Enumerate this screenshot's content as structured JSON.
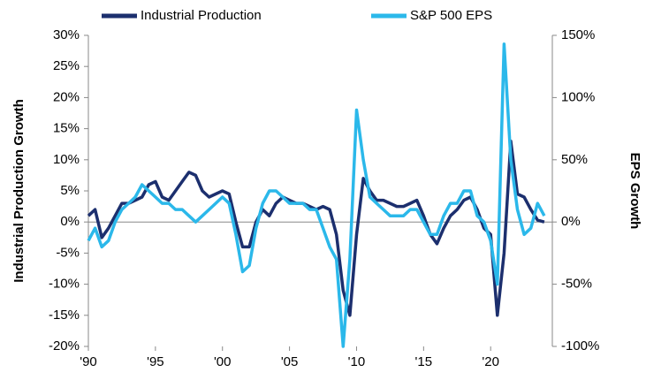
{
  "chart_data": {
    "type": "line",
    "x": [
      1990,
      1990.5,
      1991,
      1991.5,
      1992,
      1992.5,
      1993,
      1993.5,
      1994,
      1994.5,
      1995,
      1995.5,
      1996,
      1996.5,
      1997,
      1997.5,
      1998,
      1998.5,
      1999,
      1999.5,
      2000,
      2000.5,
      2001,
      2001.5,
      2002,
      2002.5,
      2003,
      2003.5,
      2004,
      2004.5,
      2005,
      2005.5,
      2006,
      2006.5,
      2007,
      2007.5,
      2008,
      2008.5,
      2009,
      2009.5,
      2010,
      2010.5,
      2011,
      2011.5,
      2012,
      2012.5,
      2013,
      2013.5,
      2014,
      2014.5,
      2015,
      2015.5,
      2016,
      2016.5,
      2017,
      2017.5,
      2018,
      2018.5,
      2019,
      2019.5,
      2020,
      2020.5,
      2021,
      2021.5,
      2022,
      2022.5,
      2023,
      2023.5,
      2024
    ],
    "series": [
      {
        "name": "Industrial Production",
        "color": "#1c2f6e",
        "axis": "y",
        "values": [
          1,
          2,
          -2.5,
          -1,
          1,
          3,
          3,
          3.5,
          4,
          6,
          6.5,
          4,
          3.5,
          5,
          6.5,
          8,
          7.5,
          5,
          4,
          4.5,
          5,
          4.5,
          0,
          -4,
          -4,
          0,
          2,
          1,
          3,
          4,
          3.5,
          3,
          3,
          2.5,
          2,
          2.5,
          2,
          -2,
          -11,
          -15,
          -2,
          7,
          5,
          3.5,
          3.5,
          3,
          2.5,
          2.5,
          3,
          3.5,
          1,
          -2,
          -3.5,
          -1,
          1,
          2,
          3.5,
          4,
          2,
          -1,
          -2,
          -15,
          -5,
          13,
          4.5,
          4,
          2,
          0.3,
          0
        ]
      },
      {
        "name": "S&P 500 EPS",
        "color": "#2bb8ea",
        "axis": "y2",
        "values": [
          -15,
          -5,
          -20,
          -15,
          0,
          10,
          15,
          20,
          30,
          25,
          20,
          15,
          15,
          10,
          10,
          5,
          0,
          5,
          10,
          15,
          20,
          15,
          -10,
          -40,
          -35,
          -5,
          15,
          25,
          25,
          20,
          15,
          15,
          15,
          10,
          10,
          -5,
          -20,
          -30,
          -100,
          -30,
          90,
          50,
          20,
          15,
          10,
          5,
          5,
          5,
          10,
          10,
          0,
          -10,
          -10,
          5,
          15,
          15,
          25,
          25,
          5,
          0,
          -15,
          -50,
          143,
          50,
          10,
          -10,
          -5,
          15,
          5
        ]
      }
    ],
    "y_label": "Industrial Production Growth",
    "y2_label": "EPS Growth",
    "xlim": [
      1990,
      2024.6
    ],
    "xticks": [
      {
        "value": 1990,
        "label": "'90"
      },
      {
        "value": 1995,
        "label": "'95"
      },
      {
        "value": 2000,
        "label": "'00"
      },
      {
        "value": 2005,
        "label": "'05"
      },
      {
        "value": 2010,
        "label": "'10"
      },
      {
        "value": 2015,
        "label": "'15"
      },
      {
        "value": 2020,
        "label": "'20"
      }
    ],
    "ylim": [
      -20,
      30
    ],
    "yticks": [
      {
        "value": -20,
        "label": "-20%"
      },
      {
        "value": -15,
        "label": "-15%"
      },
      {
        "value": -10,
        "label": "-10%"
      },
      {
        "value": -5,
        "label": "-5%"
      },
      {
        "value": 0,
        "label": "0%"
      },
      {
        "value": 5,
        "label": "5%"
      },
      {
        "value": 10,
        "label": "10%"
      },
      {
        "value": 15,
        "label": "15%"
      },
      {
        "value": 20,
        "label": "20%"
      },
      {
        "value": 25,
        "label": "25%"
      },
      {
        "value": 30,
        "label": "30%"
      }
    ],
    "y2lim": [
      -100,
      150
    ],
    "y2ticks": [
      {
        "value": -100,
        "label": "-100%"
      },
      {
        "value": -50,
        "label": "-50%"
      },
      {
        "value": 0,
        "label": "0%"
      },
      {
        "value": 50,
        "label": "50%"
      },
      {
        "value": 100,
        "label": "100%"
      },
      {
        "value": 150,
        "label": "150%"
      }
    ]
  }
}
